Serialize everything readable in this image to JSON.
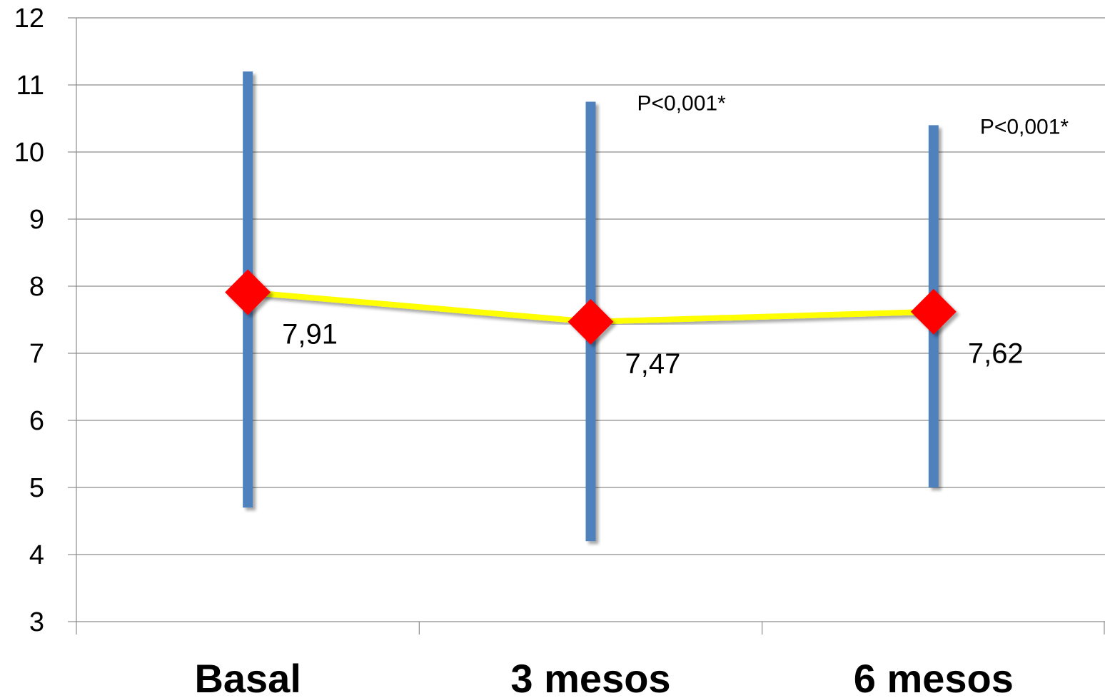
{
  "chart_data": {
    "type": "line",
    "categories": [
      "Basal",
      "3 mesos",
      "6 mesos"
    ],
    "yticks": [
      "3",
      "4",
      "5",
      "6",
      "7",
      "8",
      "9",
      "10",
      "11",
      "12"
    ],
    "ylim": [
      3,
      12
    ],
    "grid": true,
    "series": [
      {
        "values": [
          7.91,
          7.47,
          7.62
        ],
        "value_labels": [
          "7,91",
          "7,47",
          "7,62"
        ],
        "line_color": "#FFFF00",
        "marker": "diamond",
        "marker_color": "#FF0000"
      }
    ],
    "error_ranges": [
      {
        "low": 4.7,
        "high": 11.2
      },
      {
        "low": 4.2,
        "high": 10.75
      },
      {
        "low": 5.0,
        "high": 10.4
      }
    ],
    "error_bar_color": "#4F81BD",
    "annotations": [
      "",
      "P<0,001*",
      "P<0,001*"
    ]
  }
}
